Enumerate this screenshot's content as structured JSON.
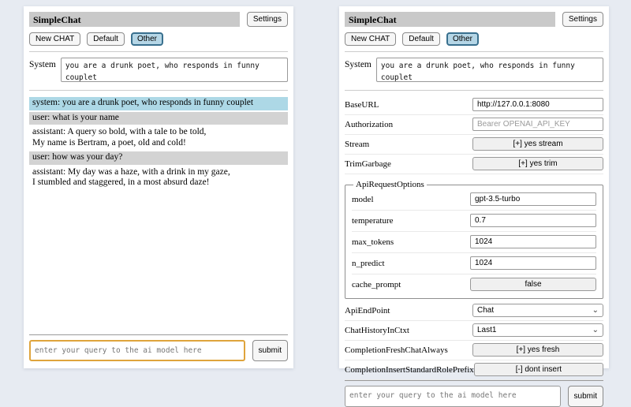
{
  "header": {
    "title": "SimpleChat",
    "settings_label": "Settings"
  },
  "toolbar": {
    "new_chat_label": "New CHAT",
    "default_label": "Default",
    "other_label": "Other",
    "active_session": "Other"
  },
  "system_prompt": {
    "label": "System",
    "value": "you are a drunk poet, who responds in funny couplet"
  },
  "chat": {
    "messages": [
      {
        "role": "system",
        "text": "system: you are a drunk poet, who responds in funny couplet"
      },
      {
        "role": "user",
        "text": "user: what is your name"
      },
      {
        "role": "assistant",
        "text": "assistant: A query so bold, with a tale to be told,\nMy name is Bertram, a poet, old and cold!"
      },
      {
        "role": "user",
        "text": "user: how was your day?"
      },
      {
        "role": "assistant",
        "text": "assistant: My day was a haze, with a drink in my gaze,\nI stumbled and staggered, in a most absurd daze!"
      }
    ]
  },
  "query": {
    "placeholder": "enter your query to the ai model here",
    "submit_label": "submit"
  },
  "settings": {
    "rows": [
      {
        "label": "BaseURL",
        "value": "http://127.0.0.1:8080"
      },
      {
        "label": "Authorization",
        "placeholder": "Bearer OPENAI_API_KEY"
      },
      {
        "label": "Stream",
        "value": "[+] yes stream"
      },
      {
        "label": "TrimGarbage",
        "value": "[+] yes trim"
      }
    ],
    "api_request_options": {
      "legend": "ApiRequestOptions",
      "rows": [
        {
          "label": "model",
          "value": "gpt-3.5-turbo"
        },
        {
          "label": "temperature",
          "value": "0.7"
        },
        {
          "label": "max_tokens",
          "value": "1024"
        },
        {
          "label": "n_predict",
          "value": "1024"
        },
        {
          "label": "cache_prompt",
          "value": "false"
        }
      ]
    },
    "rows_lower": [
      {
        "label": "ApiEndPoint",
        "value": "Chat"
      },
      {
        "label": "ChatHistoryInCtxt",
        "value": "Last1"
      },
      {
        "label": "CompletionFreshChatAlways",
        "value": "[+] yes fresh"
      },
      {
        "label": "CompletionInsertStandardRolePrefix",
        "value": "[-] dont insert"
      }
    ]
  },
  "icons": {
    "chevron_down": "⌄"
  },
  "colors": {
    "page_bg": "#e7ebf2",
    "titlebar_bg": "#c9c9c9",
    "active_session_bg": "#b5d6e6",
    "active_session_border": "#39708e",
    "system_msg_bg": "#add8e6",
    "user_msg_bg": "#d3d3d3",
    "focused_query_border": "#dfa43c"
  }
}
